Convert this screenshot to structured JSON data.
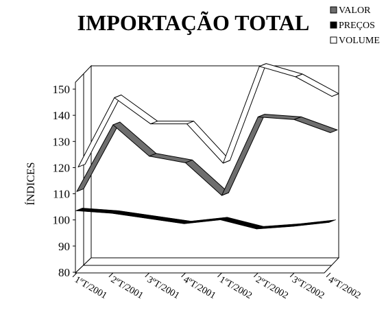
{
  "chart_data": {
    "type": "line",
    "title": "IMPORTAÇÃO TOTAL",
    "ylabel": "ÍNDICES",
    "xlabel": "",
    "categories": [
      "1ºT/2001",
      "2ºT/2001",
      "3ºT/2001",
      "4ºT/2001",
      "1ºT/2002",
      "2ºT/2002",
      "3ºT/2002",
      "4ºT/2002"
    ],
    "yticks": [
      80,
      90,
      100,
      110,
      120,
      130,
      140,
      150
    ],
    "ylim": [
      80,
      150
    ],
    "grid": false,
    "three_d": true,
    "legend_position": "top-right",
    "series": [
      {
        "name": "VALOR",
        "color": "#6e6e6e",
        "values": [
          108.5,
          134,
          122,
          119.5,
          107,
          137,
          136,
          131
        ]
      },
      {
        "name": "PREÇOS",
        "color": "#000000",
        "values": [
          103.5,
          102.5,
          100.5,
          98.5,
          100,
          96.5,
          97.5,
          99
        ]
      },
      {
        "name": "VOLUME",
        "color": "#ffffff",
        "values": [
          115.5,
          142,
          132,
          132,
          117,
          154,
          150,
          142.5
        ]
      }
    ]
  }
}
